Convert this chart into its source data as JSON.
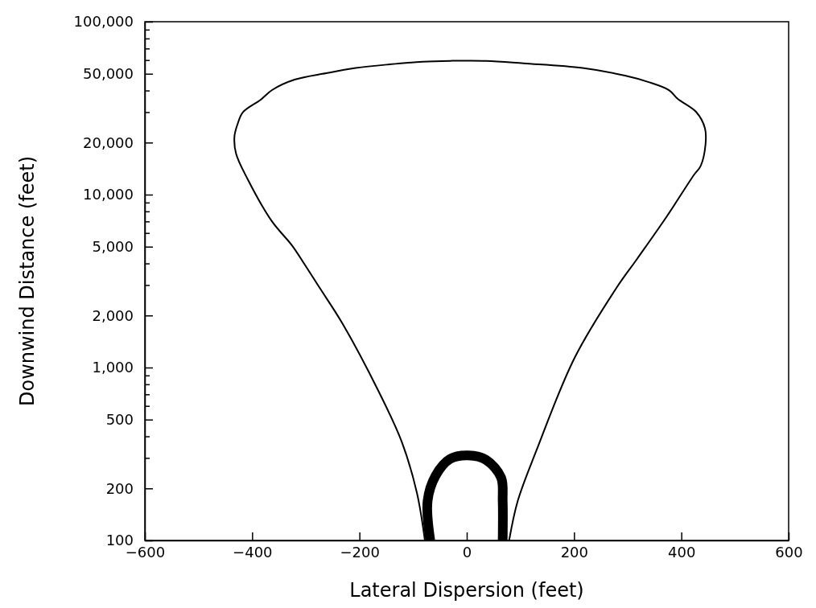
{
  "chart_data": {
    "type": "line",
    "xlabel": "Lateral Dispersion (feet)",
    "ylabel": "Downwind Distance (feet)",
    "log": "y",
    "marker": "none",
    "line_style": "solid",
    "grid": false,
    "xlim": [
      -600,
      600
    ],
    "xticks": [
      {
        "value": -600,
        "label": "−600"
      },
      {
        "value": -400,
        "label": "−400"
      },
      {
        "value": -200,
        "label": "−200"
      },
      0,
      200,
      400,
      600
    ],
    "ylim": [
      100,
      100000
    ],
    "yticks": [
      {
        "value": 100,
        "label": "100"
      },
      {
        "value": 200,
        "label": "200"
      },
      {
        "value": 300,
        "label": null
      },
      {
        "value": 400,
        "label": null
      },
      {
        "value": 500,
        "label": "500"
      },
      {
        "value": 600,
        "label": null
      },
      {
        "value": 700,
        "label": null
      },
      {
        "value": 800,
        "label": null
      },
      {
        "value": 900,
        "label": null
      },
      {
        "value": 1000,
        "label": "1,000"
      },
      {
        "value": 2000,
        "label": "2,000"
      },
      {
        "value": 3000,
        "label": null
      },
      {
        "value": 4000,
        "label": null
      },
      {
        "value": 5000,
        "label": "5,000"
      },
      {
        "value": 6000,
        "label": null
      },
      {
        "value": 7000,
        "label": null
      },
      {
        "value": 8000,
        "label": null
      },
      {
        "value": 9000,
        "label": null
      },
      {
        "value": 10000,
        "label": "10,000"
      },
      {
        "value": 20000,
        "label": "20,000"
      },
      {
        "value": 30000,
        "label": null
      },
      {
        "value": 40000,
        "label": null
      },
      {
        "value": 50000,
        "label": "50,000"
      },
      {
        "value": 60000,
        "label": null
      },
      {
        "value": 70000,
        "label": null
      },
      {
        "value": 80000,
        "label": null
      },
      {
        "value": 90000,
        "label": null
      },
      {
        "value": 100000,
        "label": "100,000"
      }
    ],
    "series": [
      {
        "color": "#000000",
        "x": [
          -78,
          -93,
          -121,
          -164,
          -231,
          -274,
          -301,
          -325,
          -364,
          -409,
          -430,
          -433,
          -427,
          -417,
          -384,
          -363,
          -321,
          -262,
          -207,
          -144,
          -82,
          -31,
          36,
          106,
          216,
          295,
          338,
          377,
          393,
          428,
          444,
          445,
          436,
          424,
          373,
          318,
          279,
          201,
          130,
          95,
          79
        ],
        "values": [
          100,
          189,
          371,
          725,
          1783,
          2886,
          3896,
          5050,
          7070,
          12390,
          17260,
          21670,
          25660,
          29980,
          35380,
          40250,
          46240,
          50400,
          53970,
          56660,
          58740,
          59390,
          59390,
          57430,
          53970,
          48780,
          44870,
          40210,
          35840,
          29980,
          24220,
          19420,
          14640,
          13070,
          7490,
          4270,
          2886,
          1137,
          332,
          169,
          100
        ]
      },
      {
        "color": "#000000",
        "x": [
          -68,
          -73,
          -58,
          -31,
          3,
          36,
          64,
          67,
          67
        ],
        "values": [
          100,
          169,
          237,
          296,
          310,
          292,
          231,
          169,
          100
        ]
      }
    ]
  }
}
